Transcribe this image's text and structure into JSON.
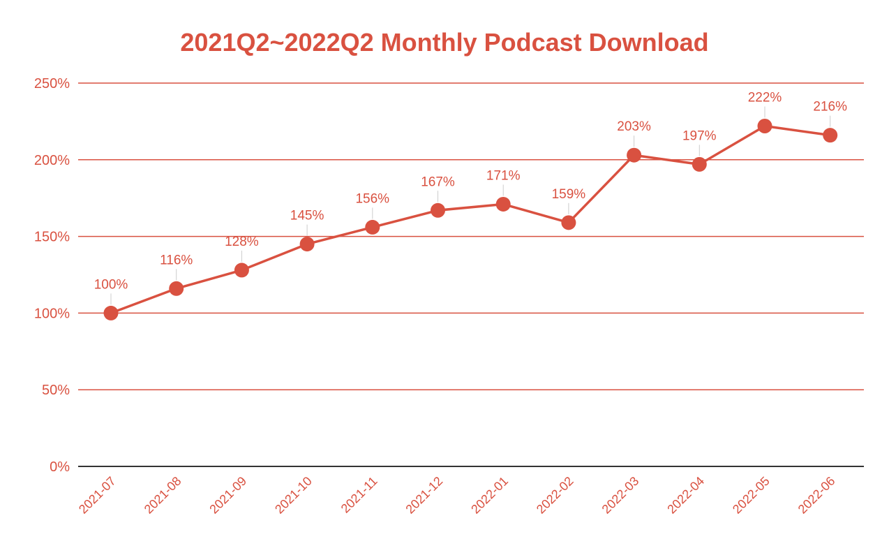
{
  "colors": {
    "accent": "#d95140",
    "grid": "#d95140",
    "axis": "#333333",
    "leader": "#cccccc",
    "background": "#ffffff"
  },
  "chart_data": {
    "type": "line",
    "title": "2021Q2~2022Q2 Monthly Podcast Download",
    "xlabel": "",
    "ylabel": "",
    "categories": [
      "2021-07",
      "2021-08",
      "2021-09",
      "2021-10",
      "2021-11",
      "2021-12",
      "2022-01",
      "2022-02",
      "2022-03",
      "2022-04",
      "2022-05",
      "2022-06"
    ],
    "series": [
      {
        "values": [
          100,
          116,
          128,
          145,
          156,
          167,
          171,
          159,
          203,
          197,
          222,
          216
        ],
        "data_labels": [
          "100%",
          "116%",
          "128%",
          "145%",
          "156%",
          "167%",
          "171%",
          "159%",
          "203%",
          "197%",
          "222%",
          "216%"
        ]
      }
    ],
    "y_unit": "%",
    "ylim": [
      0,
      250
    ],
    "y_ticks": [
      0,
      50,
      100,
      150,
      200,
      250
    ],
    "y_tick_labels": [
      "0%",
      "50%",
      "100%",
      "150%",
      "200%",
      "250%"
    ],
    "grid": true,
    "legend": "none",
    "markers": true
  }
}
